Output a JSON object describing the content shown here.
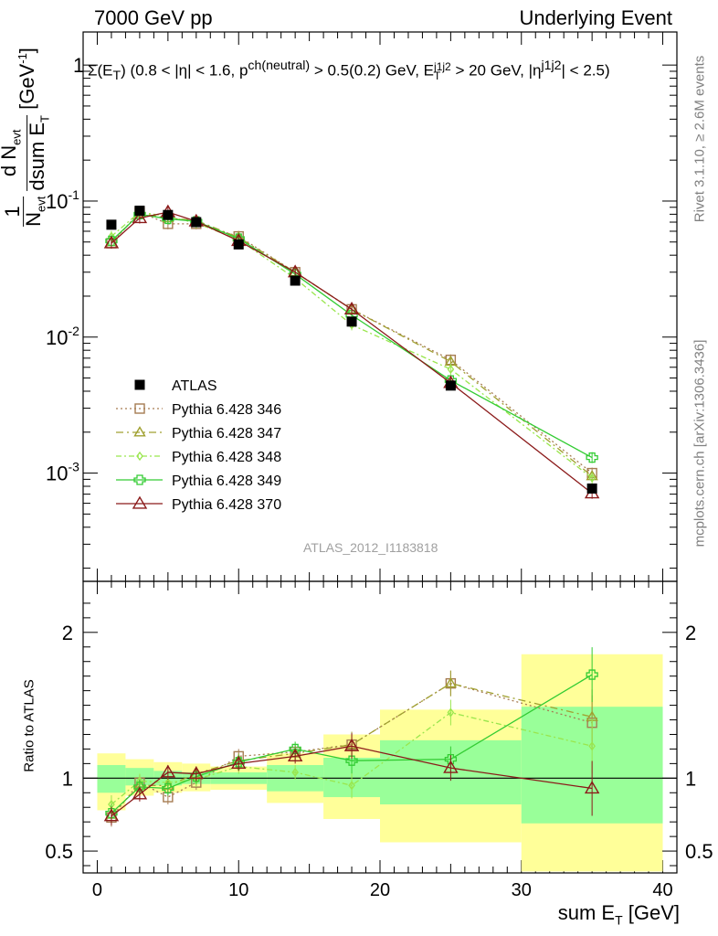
{
  "header": {
    "left": "7000 GeV pp",
    "right": "Underlying Event"
  },
  "side": {
    "rivet": "Rivet 3.1.10, ≥ 2.6M events",
    "mcplots": "mcplots.cern.ch [arXiv:1306.3436]"
  },
  "watermark": "ATLAS_2012_I1183818",
  "colors": {
    "ATLAS": "#000000",
    "p346": "#a67c52",
    "p347": "#a0a030",
    "p348": "#99e64d",
    "p349": "#33cc33",
    "p370": "#8b1a1a",
    "band_outer": "#ffff99",
    "band_inner": "#99ff99"
  },
  "chart_data": [
    {
      "type": "scatter",
      "panel": "main",
      "title": "Σ(E_T) (0.8 < |η| < 1.6, p^ch(neutral) > 0.5(0.2) GeV, E_T^j1j2 > 20 GeV, |η^j1j2| < 2.5)",
      "ylabel": "1/N_evt dN_evt/dsum E_T [GeV^-1]",
      "xlabel": "sum E_T [GeV]",
      "xlim": [
        -1,
        41
      ],
      "ylim": [
        0.00016,
        1.75
      ],
      "yscale": "log",
      "yticks": [
        "10^-3",
        "10^-2",
        "10^-1",
        "1"
      ],
      "legend": [
        "ATLAS",
        "Pythia 6.428 346",
        "Pythia 6.428 347",
        "Pythia 6.428 348",
        "Pythia 6.428 349",
        "Pythia 6.428 370"
      ],
      "series": [
        {
          "name": "ATLAS",
          "x": [
            1,
            3,
            5,
            7,
            10,
            14,
            18,
            25,
            35
          ],
          "y": [
            0.067,
            0.085,
            0.079,
            0.07,
            0.048,
            0.026,
            0.013,
            0.0044,
            0.00077
          ]
        },
        {
          "name": "Pythia 6.428 346",
          "x": [
            1,
            3,
            5,
            7,
            10,
            14,
            18,
            25,
            35
          ],
          "y": [
            0.049,
            0.083,
            0.068,
            0.068,
            0.055,
            0.03,
            0.016,
            0.0068,
            0.001
          ]
        },
        {
          "name": "Pythia 6.428 347",
          "x": [
            1,
            3,
            5,
            7,
            10,
            14,
            18,
            25,
            35
          ],
          "y": [
            0.05,
            0.081,
            0.075,
            0.072,
            0.054,
            0.03,
            0.016,
            0.0066,
            0.00095
          ]
        },
        {
          "name": "Pythia 6.428 348",
          "x": [
            1,
            3,
            5,
            7,
            10,
            14,
            18,
            25,
            35
          ],
          "y": [
            0.055,
            0.083,
            0.077,
            0.069,
            0.052,
            0.027,
            0.0123,
            0.0058,
            0.00092
          ]
        },
        {
          "name": "Pythia 6.428 349",
          "x": [
            1,
            3,
            5,
            7,
            10,
            14,
            18,
            25,
            35
          ],
          "y": [
            0.051,
            0.08,
            0.074,
            0.071,
            0.053,
            0.029,
            0.0145,
            0.0048,
            0.0013
          ]
        },
        {
          "name": "Pythia 6.428 370",
          "x": [
            1,
            3,
            5,
            7,
            10,
            14,
            18,
            25,
            35
          ],
          "y": [
            0.049,
            0.075,
            0.083,
            0.071,
            0.051,
            0.03,
            0.016,
            0.0046,
            0.00071
          ]
        }
      ]
    },
    {
      "type": "line",
      "panel": "ratio",
      "ylabel": "Ratio to ATLAS",
      "xlabel": "sum E_T [GeV]",
      "xlim": [
        -1,
        41
      ],
      "ylim": [
        0.35,
        2.35
      ],
      "xticks": [
        0,
        10,
        20,
        30,
        40
      ],
      "yticks": [
        0.5,
        1,
        2
      ],
      "bands": [
        {
          "x0": 0,
          "x1": 2,
          "outer": [
            0.78,
            1.17
          ],
          "inner": [
            0.9,
            1.09
          ]
        },
        {
          "x0": 2,
          "x1": 4,
          "outer": [
            0.88,
            1.13
          ],
          "inner": [
            0.95,
            1.07
          ]
        },
        {
          "x0": 4,
          "x1": 6,
          "outer": [
            0.9,
            1.11
          ],
          "inner": [
            0.95,
            1.05
          ]
        },
        {
          "x0": 6,
          "x1": 8,
          "outer": [
            0.91,
            1.1
          ],
          "inner": [
            0.96,
            1.04
          ]
        },
        {
          "x0": 8,
          "x1": 12,
          "outer": [
            0.92,
            1.08
          ],
          "inner": [
            0.96,
            1.04
          ]
        },
        {
          "x0": 12,
          "x1": 16,
          "outer": [
            0.83,
            1.17
          ],
          "inner": [
            0.91,
            1.09
          ]
        },
        {
          "x0": 16,
          "x1": 20,
          "outer": [
            0.72,
            1.3
          ],
          "inner": [
            0.87,
            1.14
          ]
        },
        {
          "x0": 20,
          "x1": 30,
          "outer": [
            0.56,
            1.47
          ],
          "inner": [
            0.82,
            1.26
          ]
        },
        {
          "x0": 30,
          "x1": 40,
          "outer": [
            0.36,
            1.85
          ],
          "inner": [
            0.69,
            1.49
          ]
        }
      ],
      "series": [
        {
          "name": "Pythia 6.428 346",
          "x": [
            1,
            3,
            5,
            7,
            10,
            14,
            18,
            25,
            35
          ],
          "y": [
            0.73,
            0.97,
            0.87,
            0.97,
            1.15,
            1.18,
            1.23,
            1.65,
            1.38
          ]
        },
        {
          "name": "Pythia 6.428 347",
          "x": [
            1,
            3,
            5,
            7,
            10,
            14,
            18,
            25,
            35
          ],
          "y": [
            0.75,
            0.95,
            0.95,
            1.03,
            1.12,
            1.17,
            1.23,
            1.65,
            1.42
          ]
        },
        {
          "name": "Pythia 6.428 348",
          "x": [
            1,
            3,
            5,
            7,
            10,
            14,
            18,
            25,
            35
          ],
          "y": [
            0.82,
            0.98,
            0.97,
            0.99,
            1.08,
            1.04,
            0.95,
            1.45,
            1.22
          ]
        },
        {
          "name": "Pythia 6.428 349",
          "x": [
            1,
            3,
            5,
            7,
            10,
            14,
            18,
            25,
            35
          ],
          "y": [
            0.76,
            0.94,
            0.93,
            1.01,
            1.11,
            1.2,
            1.12,
            1.13,
            1.71
          ]
        },
        {
          "name": "Pythia 6.428 370",
          "x": [
            1,
            3,
            5,
            7,
            10,
            14,
            18,
            25,
            35
          ],
          "y": [
            0.74,
            0.89,
            1.04,
            1.03,
            1.1,
            1.15,
            1.22,
            1.07,
            0.93
          ]
        }
      ]
    }
  ]
}
